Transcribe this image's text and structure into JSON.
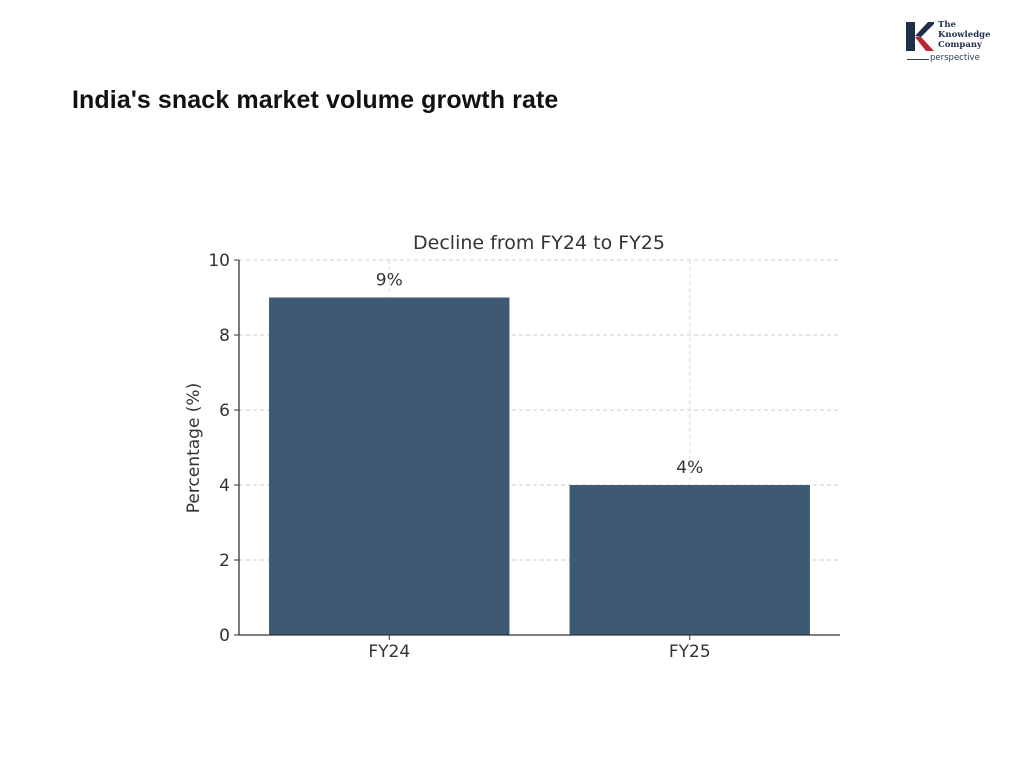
{
  "page": {
    "title": "India's snack market volume growth rate"
  },
  "logo": {
    "name_lines": [
      "The",
      "Knowledge",
      "Company"
    ],
    "tagline": "perspective",
    "colors": {
      "navy": "#1f2f4a",
      "red": "#b8272d"
    }
  },
  "chart_data": {
    "type": "bar",
    "title": "Decline from FY24 to FY25",
    "xlabel": "",
    "ylabel": "Percentage (%)",
    "categories": [
      "FY24",
      "FY25"
    ],
    "values": [
      9,
      4
    ],
    "data_labels": [
      "9%",
      "4%"
    ],
    "ylim": [
      0,
      10
    ],
    "yticks": [
      0,
      2,
      4,
      6,
      8,
      10
    ],
    "grid": true,
    "bar_color": "#3e5a72"
  }
}
